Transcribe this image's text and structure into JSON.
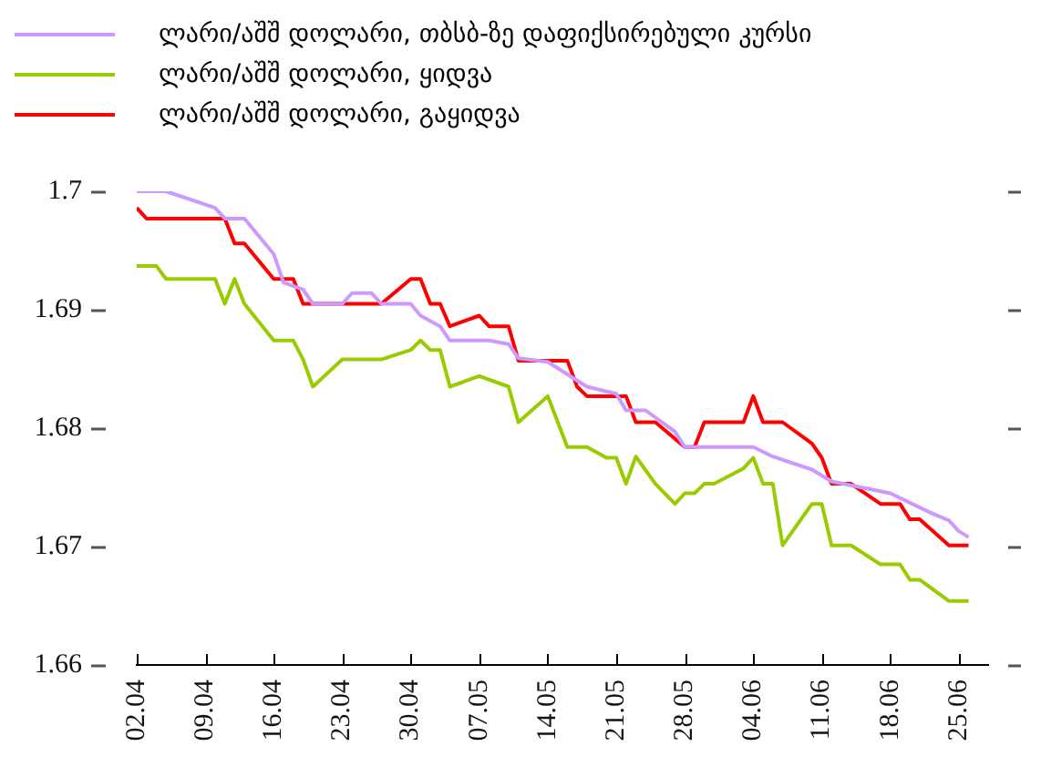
{
  "chart_data": {
    "type": "line",
    "legend": "top left",
    "marker": "none",
    "line_style": "solid",
    "xlim": [
      "--04-02",
      "--06-28"
    ],
    "xticks": [
      {
        "value": "--04-02",
        "label": "02.04"
      },
      {
        "value": "--04-09",
        "label": "09.04"
      },
      {
        "value": "--04-16",
        "label": "16.04"
      },
      {
        "value": "--04-23",
        "label": "23.04"
      },
      {
        "value": "--04-30",
        "label": "30.04"
      },
      {
        "value": "--05-07",
        "label": "07.05"
      },
      {
        "value": "--05-14",
        "label": "14.05"
      },
      {
        "value": "--05-21",
        "label": "21.05"
      },
      {
        "value": "--05-28",
        "label": "28.05"
      },
      {
        "value": "--06-04",
        "label": "04.06"
      },
      {
        "value": "--06-11",
        "label": "11.06"
      },
      {
        "value": "--06-18",
        "label": "18.06"
      },
      {
        "value": "--06-25",
        "label": "25.06"
      }
    ],
    "ylim": [
      1.66,
      1.7
    ],
    "yticks": [
      1.66,
      1.67,
      1.68,
      1.69,
      1.7
    ],
    "series": [
      {
        "name": "ლარი/აშშ დოლარი, თბსბ-ზე დაფიქსირებული კურსი",
        "color": "#cc99ff",
        "x": [
          "--04-02",
          "--04-05",
          "--04-10",
          "--04-11",
          "--04-13",
          "--04-16",
          "--04-17",
          "--04-19",
          "--04-20",
          "--04-23",
          "--04-24",
          "--04-26",
          "--04-27",
          "--04-30",
          "--05-01",
          "--05-03",
          "--05-04",
          "--05-08",
          "--05-10",
          "--05-11",
          "--05-14",
          "--05-18",
          "--05-21",
          "--05-22",
          "--05-24",
          "--05-27",
          "--05-28",
          "--06-04",
          "--06-06",
          "--06-10",
          "--06-12",
          "--06-18",
          "--06-22",
          "--06-24",
          "--06-25",
          "--06-26"
        ],
        "values": [
          1.7,
          1.7,
          1.6986,
          1.6977,
          1.6977,
          1.6947,
          1.6923,
          1.6917,
          1.6905,
          1.6905,
          1.6914,
          1.6914,
          1.6905,
          1.6905,
          1.6895,
          1.6886,
          1.6874,
          1.6874,
          1.6871,
          1.6859,
          1.6856,
          1.6835,
          1.6829,
          1.6815,
          1.6815,
          1.6797,
          1.6784,
          1.6784,
          1.6776,
          1.6765,
          1.6755,
          1.6745,
          1.6729,
          1.6722,
          1.6713,
          1.6708
        ]
      },
      {
        "name": "ლარი/აშშ დოლარი, ყიდვა",
        "color": "#99cc00",
        "x": [
          "--04-02",
          "--04-04",
          "--04-05",
          "--04-10",
          "--04-11",
          "--04-12",
          "--04-13",
          "--04-16",
          "--04-18",
          "--04-19",
          "--04-20",
          "--04-23",
          "--04-27",
          "--04-30",
          "--05-01",
          "--05-02",
          "--05-03",
          "--05-04",
          "--05-07",
          "--05-10",
          "--05-11",
          "--05-14",
          "--05-16",
          "--05-18",
          "--05-20",
          "--05-21",
          "--05-22",
          "--05-23",
          "--05-25",
          "--05-27",
          "--05-28",
          "--05-29",
          "--05-30",
          "--05-31",
          "--06-03",
          "--06-04",
          "--06-05",
          "--06-06",
          "--06-07",
          "--06-10",
          "--06-11",
          "--06-12",
          "--06-14",
          "--06-17",
          "--06-19",
          "--06-20",
          "--06-21",
          "--06-24",
          "--06-26"
        ],
        "values": [
          1.6937,
          1.6937,
          1.6926,
          1.6926,
          1.6905,
          1.6926,
          1.6905,
          1.6874,
          1.6874,
          1.6858,
          1.6835,
          1.6858,
          1.6858,
          1.6866,
          1.6874,
          1.6866,
          1.6866,
          1.6835,
          1.6844,
          1.6835,
          1.6805,
          1.6827,
          1.6784,
          1.6784,
          1.6775,
          1.6775,
          1.6753,
          1.6776,
          1.6753,
          1.6736,
          1.6745,
          1.6745,
          1.6753,
          1.6753,
          1.6766,
          1.6775,
          1.6753,
          1.6753,
          1.6701,
          1.6736,
          1.6736,
          1.6701,
          1.6701,
          1.6685,
          1.6685,
          1.6672,
          1.6672,
          1.6654,
          1.6654
        ]
      },
      {
        "name": "ლარი/აშშ დოლარი, გაყიდვა",
        "color": "#ff0000",
        "x": [
          "--04-02",
          "--04-03",
          "--04-11",
          "--04-12",
          "--04-13",
          "--04-16",
          "--04-18",
          "--04-19",
          "--04-27",
          "--04-30",
          "--05-01",
          "--05-02",
          "--05-03",
          "--05-04",
          "--05-07",
          "--05-08",
          "--05-10",
          "--05-11",
          "--05-16",
          "--05-17",
          "--05-18",
          "--05-22",
          "--05-23",
          "--05-25",
          "--05-28",
          "--05-29",
          "--05-30",
          "--06-03",
          "--06-04",
          "--06-05",
          "--06-07",
          "--06-10",
          "--06-11",
          "--06-12",
          "--06-14",
          "--06-17",
          "--06-19",
          "--06-20",
          "--06-21",
          "--06-24",
          "--06-26"
        ],
        "values": [
          1.6986,
          1.6977,
          1.6977,
          1.6956,
          1.6956,
          1.6926,
          1.6926,
          1.6905,
          1.6905,
          1.6926,
          1.6926,
          1.6905,
          1.6905,
          1.6886,
          1.6895,
          1.6886,
          1.6886,
          1.6857,
          1.6857,
          1.6835,
          1.6827,
          1.6827,
          1.6805,
          1.6805,
          1.6784,
          1.6784,
          1.6805,
          1.6805,
          1.6827,
          1.6805,
          1.6805,
          1.6787,
          1.6775,
          1.6753,
          1.6753,
          1.6736,
          1.6736,
          1.6723,
          1.6723,
          1.6701,
          1.6701
        ]
      }
    ]
  }
}
